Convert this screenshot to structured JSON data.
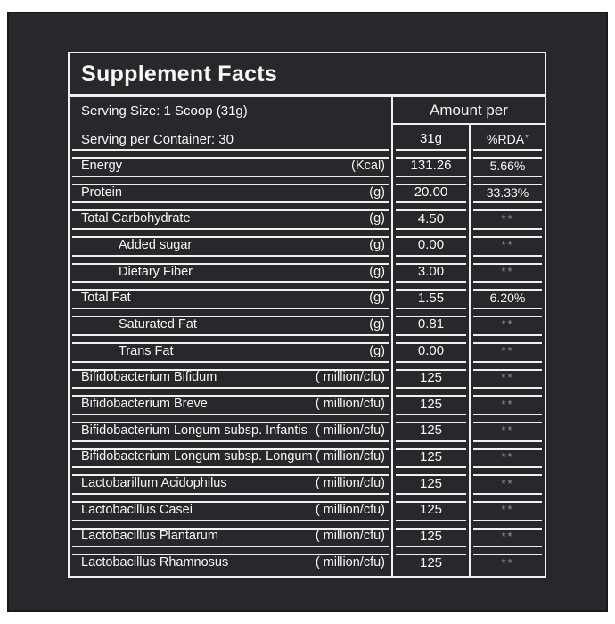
{
  "colors": {
    "page_background": "#ffffff",
    "panel_background": "#28282c",
    "rule_color": "#f0f0f0",
    "text_color": "#f7f7f7",
    "muted_color": "#95959a"
  },
  "label": {
    "title": "Supplement Facts",
    "serving_size": "Serving Size: 1 Scoop (31g)",
    "servings_per_container": "Serving per Container: 30",
    "amount_header": "Amount per",
    "amount_col": "31g",
    "rda_col": "%RDA",
    "rda_col_sup": "*",
    "rows": [
      {
        "label": "Energy",
        "unit": "(Kcal)",
        "amount": "131.26",
        "rda": "5.66%",
        "indent": false
      },
      {
        "label": "Protein",
        "unit": "(g)",
        "amount": "20.00",
        "rda": "33.33%",
        "indent": false
      },
      {
        "label": "Total Carbohydrate",
        "unit": "(g)",
        "amount": "4.50",
        "rda": "**",
        "indent": false
      },
      {
        "label": "Added sugar",
        "unit": "(g)",
        "amount": "0.00",
        "rda": "**",
        "indent": true
      },
      {
        "label": "Dietary Fiber",
        "unit": "(g)",
        "amount": "3.00",
        "rda": "**",
        "indent": true
      },
      {
        "label": "Total Fat",
        "unit": "(g)",
        "amount": "1.55",
        "rda": "6.20%",
        "indent": false
      },
      {
        "label": "Saturated Fat",
        "unit": "(g)",
        "amount": "0.81",
        "rda": "**",
        "indent": true
      },
      {
        "label": "Trans Fat",
        "unit": "(g)",
        "amount": "0.00",
        "rda": "**",
        "indent": true
      },
      {
        "label": "Bifidobacterium Bifidum",
        "unit": "( million/cfu)",
        "amount": "125",
        "rda": "**",
        "indent": false
      },
      {
        "label": "Bifidobacterium Breve",
        "unit": "( million/cfu)",
        "amount": "125",
        "rda": "**",
        "indent": false
      },
      {
        "label": "Bifidobacterium Longum subsp. Infantis",
        "unit": "( million/cfu)",
        "amount": "125",
        "rda": "**",
        "indent": false
      },
      {
        "label": "Bifidobacterium Longum subsp. Longum",
        "unit": "( million/cfu)",
        "amount": "125",
        "rda": "**",
        "indent": false
      },
      {
        "label": "Lactobarillum Acidophilus",
        "unit": "( million/cfu)",
        "amount": "125",
        "rda": "**",
        "indent": false
      },
      {
        "label": "Lactobacillus Casei",
        "unit": "( million/cfu)",
        "amount": "125",
        "rda": "**",
        "indent": false
      },
      {
        "label": "Lactobacillus Plantarum",
        "unit": "( million/cfu)",
        "amount": "125",
        "rda": "**",
        "indent": false
      },
      {
        "label": "Lactobacillus Rhamnosus",
        "unit": "( million/cfu)",
        "amount": "125",
        "rda": "**",
        "indent": false
      }
    ]
  }
}
